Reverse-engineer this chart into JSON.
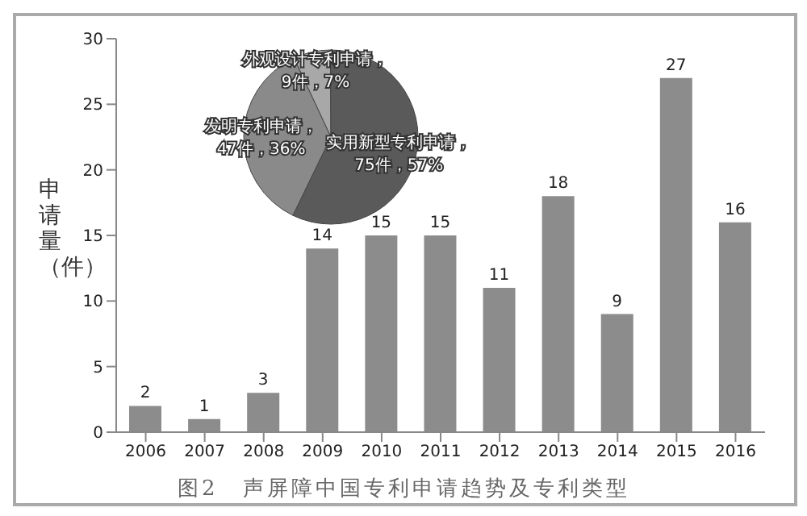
{
  "chart_data": [
    {
      "type": "bar",
      "ylabel": "申请量（件）",
      "categories": [
        "2006",
        "2007",
        "2008",
        "2009",
        "2010",
        "2011",
        "2012",
        "2013",
        "2014",
        "2015",
        "2016"
      ],
      "values": [
        2,
        1,
        3,
        14,
        15,
        15,
        11,
        18,
        9,
        27,
        16
      ],
      "color": "#8c8c8c",
      "ylim": [
        0,
        30
      ],
      "yticks": [
        0,
        5,
        10,
        15,
        20,
        25,
        30
      ],
      "grid": false,
      "data_labels": true,
      "annotations": [
        "图2　声屏障中国专利申请趋势及专利类型"
      ]
    },
    {
      "type": "pie",
      "categories": [
        "外观设计专利申请",
        "实用新型专利申请",
        "发明专利申请"
      ],
      "values": [
        9,
        75,
        47
      ],
      "colors": [
        "#a8a8a8",
        "#5a5a5a",
        "#8a8a8a"
      ],
      "value_labels": [
        "，9件，7%",
        "，75件，57%",
        "，47件，36%"
      ]
    }
  ]
}
